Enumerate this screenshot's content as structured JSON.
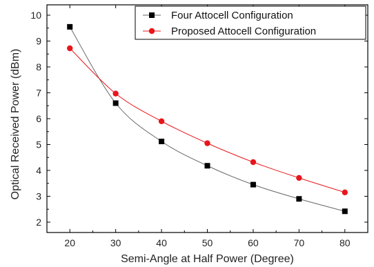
{
  "chart_data": {
    "type": "line",
    "title": "",
    "xlabel": "Semi-Angle at Half Power (Degree)",
    "ylabel": "Optical Received Power (dBm)",
    "xlim": [
      15,
      85
    ],
    "ylim": [
      1.6,
      10.4
    ],
    "xticks": [
      20,
      30,
      40,
      50,
      60,
      70,
      80
    ],
    "yticks": [
      2,
      3,
      4,
      5,
      6,
      7,
      8,
      9,
      10
    ],
    "x": [
      20,
      30,
      40,
      50,
      60,
      70,
      80
    ],
    "series": [
      {
        "name": "Four Attocell Configuration",
        "values": [
          9.55,
          6.6,
          5.12,
          4.18,
          3.45,
          2.9,
          2.42
        ],
        "color": "#000000",
        "marker": "square",
        "line_color": "#666666"
      },
      {
        "name": "Proposed Attocell Configuration",
        "values": [
          8.72,
          6.97,
          5.9,
          5.05,
          4.32,
          3.71,
          3.15
        ],
        "color": "#e8161b",
        "marker": "circle",
        "line_color": "#e8161b"
      }
    ],
    "grid": false,
    "legend_position": "top-right"
  }
}
